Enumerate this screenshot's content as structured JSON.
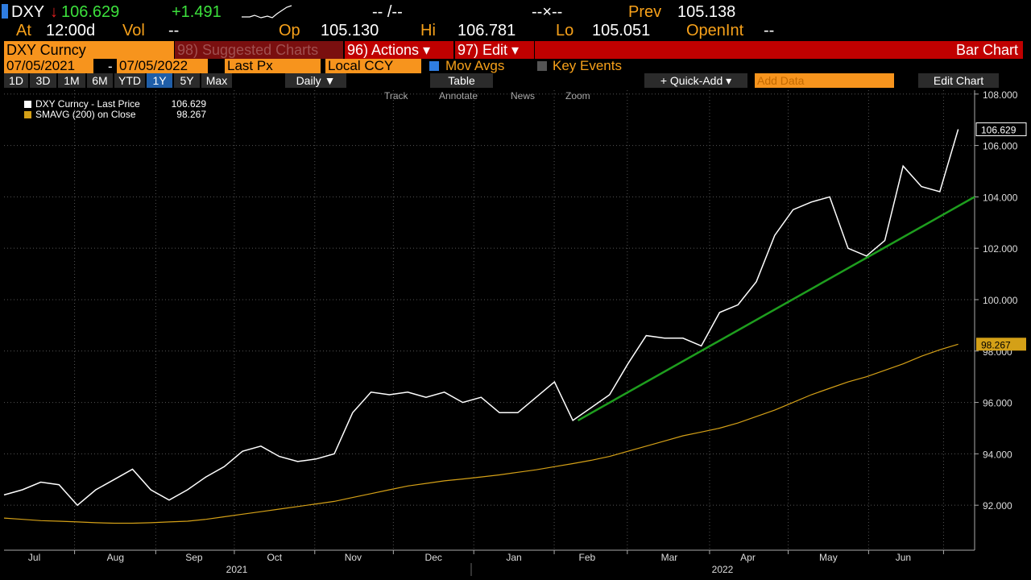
{
  "header": {
    "ticker": "DXY",
    "last": "106.629",
    "change": "+1.491",
    "bidask": "-- /--",
    "size": "--×--",
    "prev_label": "Prev",
    "prev": "105.138",
    "at_label": "At",
    "time": "12:00d",
    "vol_label": "Vol",
    "vol": "--",
    "op_label": "Op",
    "op": "105.130",
    "hi_label": "Hi",
    "hi": "106.781",
    "lo_label": "Lo",
    "lo": "105.051",
    "oi_label": "OpenInt",
    "oi": "--"
  },
  "toolbar": {
    "security": "DXY Curncy",
    "suggested": "98) Suggested Charts",
    "actions": "96) Actions ▾",
    "edit": "97) Edit ▾",
    "chart_type": "Bar Chart",
    "start": "07/05/2021",
    "dash": "-",
    "end": "07/05/2022",
    "field": "Last Px",
    "currency": "Local CCY",
    "mov_avgs": "Mov Avgs",
    "key_events": "Key Events",
    "periods": [
      "1D",
      "3D",
      "1M",
      "6M",
      "YTD",
      "1Y",
      "5Y",
      "Max"
    ],
    "frequency": "Daily ▼",
    "table": "Table",
    "quick_add": "+ Quick-Add ▾",
    "add_data": "Add Data",
    "edit_chart": "Edit Chart",
    "tools": [
      "Track",
      "Annotate",
      "News",
      "Zoom"
    ]
  },
  "chart_data": {
    "type": "line",
    "legend": [
      "DXY Curncy - Last Price",
      "SMAVG (200) on Close"
    ],
    "series": [
      {
        "name": "DXY Curncy",
        "color": "#ffffff",
        "values": [
          92.4,
          92.6,
          92.9,
          92.8,
          92.0,
          92.6,
          93.0,
          93.4,
          92.6,
          92.2,
          92.6,
          93.1,
          93.5,
          94.1,
          94.3,
          93.9,
          93.7,
          93.8,
          94.0,
          95.6,
          96.4,
          96.3,
          96.4,
          96.2,
          96.4,
          96.0,
          96.2,
          95.6,
          95.6,
          96.2,
          96.8,
          95.3,
          95.8,
          96.3,
          97.5,
          98.6,
          98.5,
          98.5,
          98.2,
          99.5,
          99.8,
          100.7,
          102.5,
          103.5,
          103.8,
          104.0,
          102.0,
          101.7,
          102.3,
          105.2,
          104.4,
          104.2,
          106.629
        ]
      },
      {
        "name": "SMAVG (200)",
        "color": "#d4a017",
        "values": [
          91.5,
          91.45,
          91.4,
          91.38,
          91.35,
          91.32,
          91.3,
          91.3,
          91.32,
          91.35,
          91.38,
          91.45,
          91.55,
          91.65,
          91.75,
          91.85,
          91.95,
          92.05,
          92.15,
          92.3,
          92.45,
          92.6,
          92.75,
          92.85,
          92.95,
          93.02,
          93.1,
          93.18,
          93.28,
          93.38,
          93.5,
          93.62,
          93.75,
          93.9,
          94.1,
          94.3,
          94.5,
          94.7,
          94.85,
          95.0,
          95.2,
          95.45,
          95.7,
          96.0,
          96.3,
          96.55,
          96.8,
          97.0,
          97.25,
          97.5,
          97.8,
          98.05,
          98.267
        ]
      }
    ],
    "trendline": {
      "color": "#1e9e1e",
      "x": [
        31.4,
        53.1
      ],
      "y": [
        95.3,
        104.0
      ]
    },
    "xlim": [
      0,
      53.1
    ],
    "ylim": [
      90.25,
      108.15
    ],
    "yticks": [
      {
        "value": 92,
        "label": "92.000"
      },
      {
        "value": 94,
        "label": "94.000"
      },
      {
        "value": 96,
        "label": "96.000"
      },
      {
        "value": 98,
        "label": "98.000"
      },
      {
        "value": 100,
        "label": "100.000"
      },
      {
        "value": 102,
        "label": "102.000"
      },
      {
        "value": 104,
        "label": "104.000"
      },
      {
        "value": 106,
        "label": "106.000"
      },
      {
        "value": 108,
        "label": "108.000"
      }
    ],
    "xticks": [
      {
        "value": 3.86,
        "label": "Jul"
      },
      {
        "value": 8.3,
        "label": "Aug"
      },
      {
        "value": 12.6,
        "label": "Sep"
      },
      {
        "value": 17.0,
        "label": "Oct"
      },
      {
        "value": 21.3,
        "label": "Nov"
      },
      {
        "value": 25.7,
        "label": "Dec"
      },
      {
        "value": 30.1,
        "label": "Jan"
      },
      {
        "value": 34.1,
        "label": "Feb"
      },
      {
        "value": 38.6,
        "label": "Mar"
      },
      {
        "value": 42.9,
        "label": "Apr"
      },
      {
        "value": 47.3,
        "label": "May"
      },
      {
        "value": 51.4,
        "label": "Jun"
      }
    ],
    "years": [
      "2021",
      "2022"
    ],
    "grid": true
  }
}
